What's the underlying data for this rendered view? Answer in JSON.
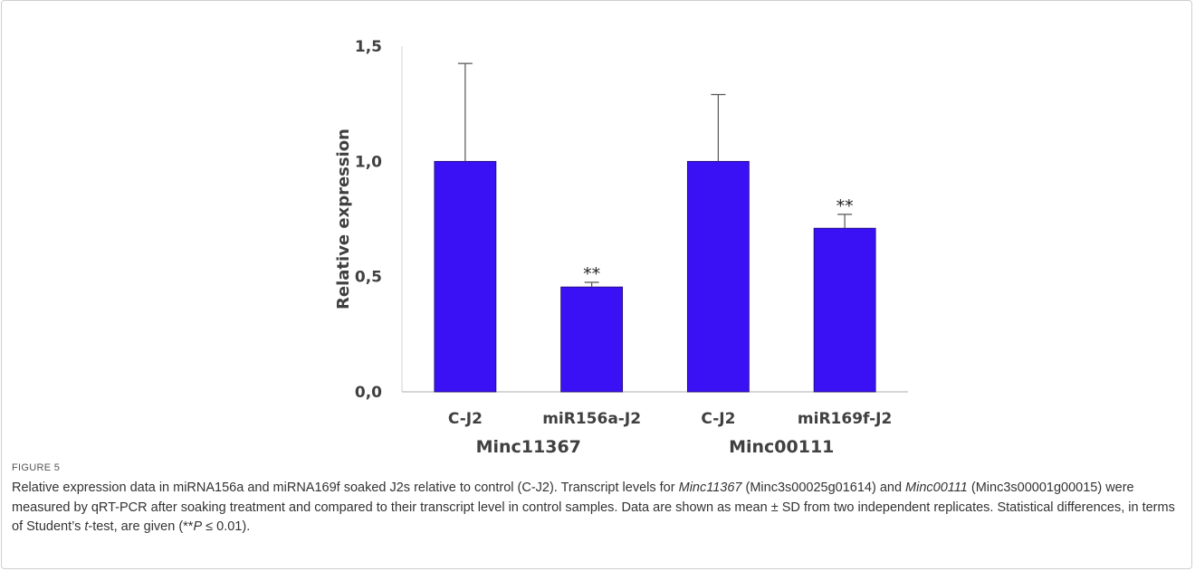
{
  "figure": {
    "label": "FIGURE 5",
    "caption_parts": [
      {
        "text": "Relative expression data in miRNA156a and miRNA169f soaked J2s relative to control (C-J2). Transcript levels for ",
        "italic": false
      },
      {
        "text": "Minc11367",
        "italic": true
      },
      {
        "text": " (Minc3s00025g01614) and ",
        "italic": false
      },
      {
        "text": "Minc00111",
        "italic": true
      },
      {
        "text": " (Minc3s00001g00015) were measured by qRT-PCR after soaking treatment and compared to their transcript level in control samples. Data are shown as mean ± SD from two independent replicates. Statistical differences, in terms of Student’s ",
        "italic": false
      },
      {
        "text": "t",
        "italic": true
      },
      {
        "text": "-test, are given (**",
        "italic": false
      },
      {
        "text": "P",
        "italic": true
      },
      {
        "text": " ≤ 0.01).",
        "italic": false
      }
    ]
  },
  "chart_data": {
    "type": "bar",
    "categories": [
      "C-J2",
      "miR156a-J2",
      "C-J2",
      "miR169f-J2"
    ],
    "groups": [
      {
        "label": "Minc11367",
        "categories": [
          0,
          1
        ]
      },
      {
        "label": "Minc00111",
        "categories": [
          2,
          3
        ]
      }
    ],
    "series": [
      {
        "values": [
          1.0,
          0.455,
          1.0,
          0.71
        ],
        "errors": [
          0.425,
          0.02,
          0.29,
          0.06
        ],
        "significance": [
          "",
          "**",
          "",
          "**"
        ]
      }
    ],
    "ylabel": "Relative expression",
    "xlabel": "",
    "ylim": [
      0,
      1.5
    ],
    "yticks": [
      0.0,
      0.5,
      1.0,
      1.5
    ],
    "ytick_labels": [
      "0,0",
      "0,5",
      "1,0",
      "1,5"
    ],
    "bar_color": "#3a10f5",
    "bar_edge_color": "#1e0a6e",
    "error_color": "#555555",
    "grid": false,
    "legend": "none"
  }
}
